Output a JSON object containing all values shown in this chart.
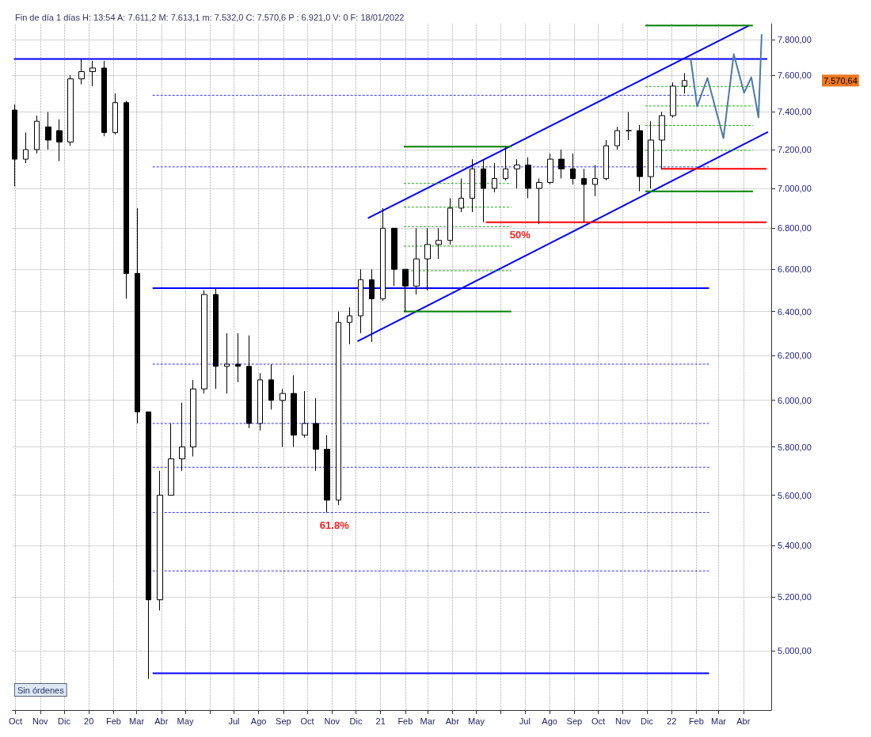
{
  "chart_data": {
    "type": "candlestick",
    "title": "Fin de día 1 días H: 13:54 A: 7.611,2 M: 7.613,1 m: 7.532,0 C: 7.570,6 P : 6.921,0 V: 0 F: 18/01/2022",
    "log": true,
    "grid": true,
    "xlim": [
      "2019-09-27",
      "2022-05-06"
    ],
    "xticks": [
      {
        "value": "2019-10-01",
        "label": "Oct"
      },
      {
        "value": "2019-11-01",
        "label": "Nov"
      },
      {
        "value": "2019-12-01",
        "label": "Dic"
      },
      {
        "value": "2020-01-01",
        "label": "20"
      },
      {
        "value": "2020-02-01",
        "label": "Feb"
      },
      {
        "value": "2020-03-01",
        "label": "Mar"
      },
      {
        "value": "2020-04-01",
        "label": "Abr"
      },
      {
        "value": "2020-05-01",
        "label": "May"
      },
      {
        "value": "2020-06-01",
        "label": null
      },
      {
        "value": "2020-07-01",
        "label": "Jul"
      },
      {
        "value": "2020-08-01",
        "label": "Ago"
      },
      {
        "value": "2020-09-01",
        "label": "Sep"
      },
      {
        "value": "2020-10-01",
        "label": "Oct"
      },
      {
        "value": "2020-11-01",
        "label": "Nov"
      },
      {
        "value": "2020-12-01",
        "label": "Dic"
      },
      {
        "value": "2021-01-01",
        "label": "21"
      },
      {
        "value": "2021-02-01",
        "label": "Feb"
      },
      {
        "value": "2021-03-01",
        "label": "Mar"
      },
      {
        "value": "2021-04-01",
        "label": "Abr"
      },
      {
        "value": "2021-05-01",
        "label": "May"
      },
      {
        "value": "2021-06-01",
        "label": null
      },
      {
        "value": "2021-07-01",
        "label": "Jul"
      },
      {
        "value": "2021-08-01",
        "label": "Ago"
      },
      {
        "value": "2021-09-01",
        "label": "Sep"
      },
      {
        "value": "2021-10-01",
        "label": "Oct"
      },
      {
        "value": "2021-11-01",
        "label": "Nov"
      },
      {
        "value": "2021-12-01",
        "label": "Dic"
      },
      {
        "value": "2022-01-01",
        "label": "22"
      },
      {
        "value": "2022-02-01",
        "label": "Feb"
      },
      {
        "value": "2022-03-01",
        "label": "Mar"
      },
      {
        "value": "2022-04-01",
        "label": "Abr"
      }
    ],
    "ylim": [
      4790,
      7890
    ],
    "yticks": [
      {
        "value": 5000,
        "label": "5.000,00"
      },
      {
        "value": 5200,
        "label": "5.200,00"
      },
      {
        "value": 5400,
        "label": "5.400,00"
      },
      {
        "value": 5600,
        "label": "5.600,00"
      },
      {
        "value": 5800,
        "label": "5.800,00"
      },
      {
        "value": 6000,
        "label": "6.000,00"
      },
      {
        "value": 6200,
        "label": "6.200,00"
      },
      {
        "value": 6400,
        "label": "6.400,00"
      },
      {
        "value": 6600,
        "label": "6.600,00"
      },
      {
        "value": 6800,
        "label": "6.800,00"
      },
      {
        "value": 7000,
        "label": "7.000,00"
      },
      {
        "value": 7200,
        "label": "7.200,00"
      },
      {
        "value": 7400,
        "label": "7.400,00"
      },
      {
        "value": 7600,
        "label": "7.600,00"
      },
      {
        "value": 7800,
        "label": "7.800,00"
      }
    ],
    "annotations": [
      "Sin órdenes",
      {
        "text": "61.8%",
        "x": "2020-11-04",
        "y": 5530
      },
      {
        "text": "50%",
        "x": "2021-06-25",
        "y": 6830
      },
      "7.570,64"
    ],
    "series": [
      {
        "type": "line",
        "color": "#0000ff",
        "line_style": "solid",
        "x": [
          "2019-09-29",
          "2022-05-01"
        ],
        "values": [
          7690,
          7690
        ]
      },
      {
        "type": "line",
        "color": "#0000ff",
        "line_style": "solid",
        "x": [
          "2020-03-21",
          "2022-02-17"
        ],
        "values": [
          6510,
          6510
        ]
      },
      {
        "type": "line",
        "color": "#0000ff",
        "line_style": "solid",
        "x": [
          "2020-03-21",
          "2022-02-17"
        ],
        "values": [
          4920,
          4920
        ]
      },
      {
        "type": "line",
        "color": "#3333ff",
        "line_style": "dashed",
        "x": [
          "2020-03-21",
          "2022-02-17"
        ],
        "values": [
          7490,
          7490
        ]
      },
      {
        "type": "line",
        "color": "#3333ff",
        "line_style": "dashed",
        "x": [
          "2020-03-21",
          "2022-02-17"
        ],
        "values": [
          7110,
          7110
        ]
      },
      {
        "type": "line",
        "color": "#3333ff",
        "line_style": "dashed",
        "x": [
          "2020-03-21",
          "2022-02-17"
        ],
        "values": [
          6160,
          6160
        ]
      },
      {
        "type": "line",
        "color": "#3333ff",
        "line_style": "dashed",
        "x": [
          "2020-03-21",
          "2022-02-17"
        ],
        "values": [
          5900,
          5900
        ]
      },
      {
        "type": "line",
        "color": "#3333ff",
        "line_style": "dashed",
        "x": [
          "2020-03-21",
          "2022-02-17"
        ],
        "values": [
          5715,
          5715
        ]
      },
      {
        "type": "line",
        "color": "#3333ff",
        "line_style": "dashed",
        "x": [
          "2020-03-21",
          "2022-02-17"
        ],
        "values": [
          5530,
          5530
        ]
      },
      {
        "type": "line",
        "color": "#3333ff",
        "line_style": "dashed",
        "x": [
          "2020-03-21",
          "2022-02-17"
        ],
        "values": [
          5300,
          5300
        ]
      },
      {
        "type": "line",
        "color": "#0000ff",
        "line_style": "solid",
        "x": [
          "2020-12-16",
          "2022-04-08"
        ],
        "values": [
          6850,
          7879
        ]
      },
      {
        "type": "line",
        "color": "#0000ff",
        "line_style": "solid",
        "x": [
          "2020-12-03",
          "2022-05-02"
        ],
        "values": [
          6263,
          7293
        ]
      },
      {
        "type": "line",
        "color": "#008000",
        "line_style": "solid",
        "x": [
          "2021-01-30",
          "2021-06-14"
        ],
        "values": [
          7215,
          7215
        ]
      },
      {
        "type": "line",
        "color": "#008000",
        "line_style": "solid",
        "x": [
          "2021-01-30",
          "2021-06-14"
        ],
        "values": [
          6400,
          6400
        ]
      },
      {
        "type": "line",
        "color": "#22aa22",
        "line_style": "dashed",
        "x": [
          "2021-01-30",
          "2021-06-14"
        ],
        "values": [
          7025,
          7025
        ]
      },
      {
        "type": "line",
        "color": "#22aa22",
        "line_style": "dashed",
        "x": [
          "2021-01-30",
          "2021-06-14"
        ],
        "values": [
          6905,
          6905
        ]
      },
      {
        "type": "line",
        "color": "#22aa22",
        "line_style": "dashed",
        "x": [
          "2021-01-30",
          "2021-06-14"
        ],
        "values": [
          6808,
          6808
        ]
      },
      {
        "type": "line",
        "color": "#22aa22",
        "line_style": "dashed",
        "x": [
          "2021-01-30",
          "2021-06-14"
        ],
        "values": [
          6712,
          6712
        ]
      },
      {
        "type": "line",
        "color": "#22aa22",
        "line_style": "dashed",
        "x": [
          "2021-02-08",
          "2021-06-14"
        ],
        "values": [
          6593,
          6593
        ]
      },
      {
        "type": "line",
        "color": "#008000",
        "line_style": "solid",
        "x": [
          "2021-11-29",
          "2022-04-13"
        ],
        "values": [
          7880,
          7880
        ]
      },
      {
        "type": "line",
        "color": "#008000",
        "line_style": "solid",
        "x": [
          "2021-11-29",
          "2022-04-13"
        ],
        "values": [
          6985,
          6985
        ]
      },
      {
        "type": "line",
        "color": "#22aa22",
        "line_style": "dashed",
        "x": [
          "2021-11-29",
          "2022-04-13"
        ],
        "values": [
          7538,
          7538
        ]
      },
      {
        "type": "line",
        "color": "#22aa22",
        "line_style": "dashed",
        "x": [
          "2021-11-29",
          "2022-04-13"
        ],
        "values": [
          7432,
          7432
        ]
      },
      {
        "type": "line",
        "color": "#22aa22",
        "line_style": "dashed",
        "x": [
          "2021-11-29",
          "2022-04-13"
        ],
        "values": [
          7327,
          7327
        ]
      },
      {
        "type": "line",
        "color": "#22aa22",
        "line_style": "dashed",
        "x": [
          "2021-11-29",
          "2022-04-13"
        ],
        "values": [
          7196,
          7196
        ]
      },
      {
        "type": "line",
        "color": "#ff0000",
        "line_style": "solid",
        "x": [
          "2021-05-13",
          "2022-04-30"
        ],
        "values": [
          6830,
          6830
        ]
      },
      {
        "type": "line",
        "color": "#ff0000",
        "line_style": "solid",
        "x": [
          "2021-12-19",
          "2022-04-30"
        ],
        "values": [
          7100,
          7100
        ]
      },
      {
        "type": "line",
        "color": "#4a7aa8",
        "line_style": "solid",
        "x": [
          "2022-01-25",
          "2022-02-02",
          "2022-02-15",
          "2022-03-07",
          "2022-03-20",
          "2022-04-02",
          "2022-04-11",
          "2022-04-20",
          "2022-04-24"
        ],
        "values": [
          7691,
          7430,
          7585,
          7260,
          7717,
          7504,
          7589,
          7371,
          7830
        ]
      },
      {
        "color": "#000000",
        "x": [
          "2019-09-30",
          "2019-10-14",
          "2019-10-28",
          "2019-11-11",
          "2019-11-25",
          "2019-12-09",
          "2019-12-23",
          "2020-01-06",
          "2020-01-20",
          "2020-02-03",
          "2020-02-17",
          "2020-03-02",
          "2020-03-16",
          "2020-03-30",
          "2020-04-13",
          "2020-04-27",
          "2020-05-11",
          "2020-05-25",
          "2020-06-08",
          "2020-06-22",
          "2020-07-06",
          "2020-07-20",
          "2020-08-03",
          "2020-08-17",
          "2020-08-31",
          "2020-09-14",
          "2020-09-28",
          "2020-10-12",
          "2020-10-26",
          "2020-11-09",
          "2020-11-23",
          "2020-12-07",
          "2020-12-21",
          "2021-01-04",
          "2021-01-18",
          "2021-02-01",
          "2021-02-15",
          "2021-03-01",
          "2021-03-15",
          "2021-03-29",
          "2021-04-12",
          "2021-04-26",
          "2021-05-10",
          "2021-05-24",
          "2021-06-07",
          "2021-06-21",
          "2021-07-05",
          "2021-07-19",
          "2021-08-02",
          "2021-08-16",
          "2021-08-30",
          "2021-09-13",
          "2021-09-27",
          "2021-10-11",
          "2021-10-25",
          "2021-11-08",
          "2021-11-22",
          "2021-12-06",
          "2021-12-20",
          "2022-01-03",
          "2022-01-17"
        ],
        "ohlc": [
          [
            7410,
            7440,
            7010,
            7150
          ],
          [
            7150,
            7290,
            7130,
            7200
          ],
          [
            7200,
            7380,
            7180,
            7350
          ],
          [
            7320,
            7400,
            7200,
            7250
          ],
          [
            7300,
            7360,
            7140,
            7240
          ],
          [
            7240,
            7600,
            7220,
            7580
          ],
          [
            7580,
            7690,
            7550,
            7620
          ],
          [
            7620,
            7680,
            7540,
            7640
          ],
          [
            7640,
            7680,
            7270,
            7290
          ],
          [
            7290,
            7500,
            7280,
            7450
          ],
          [
            7450,
            7460,
            6460,
            6580
          ],
          [
            6580,
            6900,
            5900,
            5950
          ],
          [
            5950,
            5950,
            4900,
            5190
          ],
          [
            5190,
            5700,
            5150,
            5600
          ],
          [
            5600,
            5900,
            5600,
            5750
          ],
          [
            5750,
            5990,
            5700,
            5800
          ],
          [
            5800,
            6090,
            5760,
            6050
          ],
          [
            6050,
            6500,
            6030,
            6480
          ],
          [
            6480,
            6510,
            6050,
            6150
          ],
          [
            6150,
            6300,
            6030,
            6160
          ],
          [
            6160,
            6300,
            6080,
            6150
          ],
          [
            6150,
            6290,
            5880,
            5900
          ],
          [
            5900,
            6120,
            5870,
            6090
          ],
          [
            6090,
            6160,
            5960,
            6000
          ],
          [
            6000,
            6050,
            5800,
            6030
          ],
          [
            6030,
            6110,
            5800,
            5850
          ],
          [
            5850,
            6040,
            5840,
            5900
          ],
          [
            5900,
            6010,
            5700,
            5790
          ],
          [
            5790,
            5850,
            5530,
            5580
          ],
          [
            5580,
            6400,
            5560,
            6350
          ],
          [
            6350,
            6420,
            6250,
            6380
          ],
          [
            6380,
            6600,
            6300,
            6550
          ],
          [
            6550,
            6600,
            6260,
            6460
          ],
          [
            6460,
            6900,
            6450,
            6800
          ],
          [
            6800,
            6800,
            6520,
            6600
          ],
          [
            6600,
            6600,
            6400,
            6520
          ],
          [
            6520,
            6800,
            6480,
            6650
          ],
          [
            6650,
            6800,
            6500,
            6720
          ],
          [
            6720,
            6800,
            6650,
            6740
          ],
          [
            6740,
            6950,
            6720,
            6900
          ],
          [
            6900,
            7050,
            6880,
            6950
          ],
          [
            6950,
            7150,
            6880,
            7100
          ],
          [
            7100,
            7150,
            6830,
            7000
          ],
          [
            7000,
            7130,
            6980,
            7050
          ],
          [
            7050,
            7220,
            7040,
            7100
          ],
          [
            7100,
            7150,
            7000,
            7120
          ],
          [
            7120,
            7160,
            6950,
            7000
          ],
          [
            7000,
            7050,
            6820,
            7030
          ],
          [
            7030,
            7180,
            7020,
            7150
          ],
          [
            7150,
            7200,
            7050,
            7100
          ],
          [
            7100,
            7180,
            7020,
            7050
          ],
          [
            7050,
            7100,
            6830,
            7020
          ],
          [
            7020,
            7120,
            6960,
            7050
          ],
          [
            7050,
            7250,
            7040,
            7220
          ],
          [
            7220,
            7320,
            7200,
            7300
          ],
          [
            7300,
            7400,
            7250,
            7300
          ],
          [
            7300,
            7330,
            6985,
            7060
          ],
          [
            7060,
            7350,
            7000,
            7250
          ],
          [
            7250,
            7400,
            7100,
            7380
          ],
          [
            7380,
            7560,
            7370,
            7540
          ],
          [
            7540,
            7611.2,
            7500,
            7570.6
          ]
        ]
      }
    ]
  }
}
